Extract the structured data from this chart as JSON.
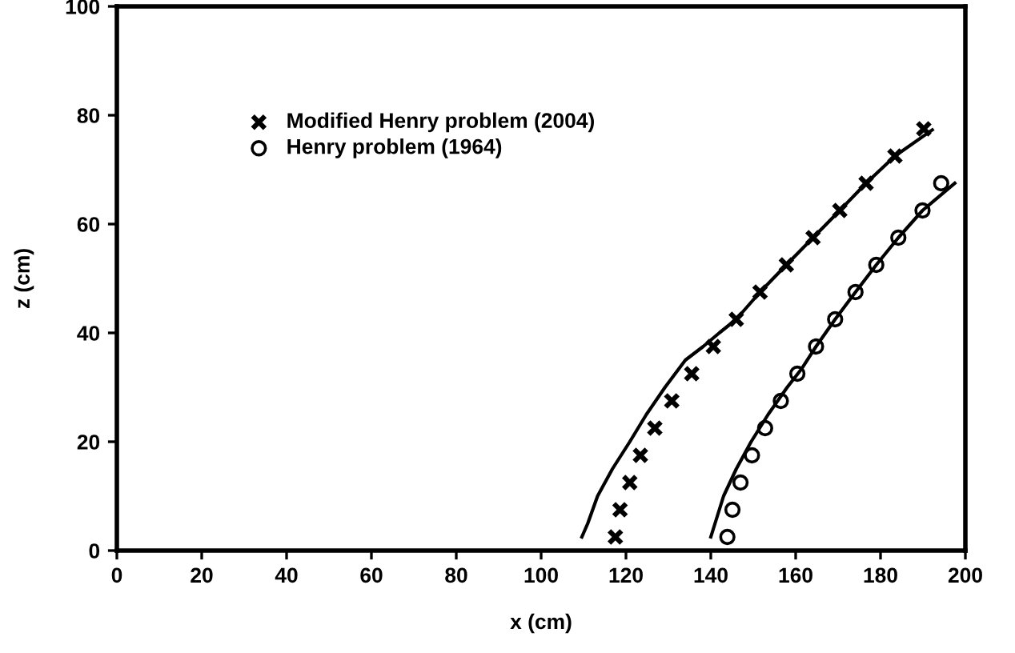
{
  "chart_data": {
    "type": "scatter",
    "xlabel": "x (cm)",
    "ylabel": "z (cm)",
    "xlim": [
      0,
      200
    ],
    "xticks": [
      0,
      20,
      40,
      60,
      80,
      100,
      120,
      140,
      160,
      180,
      200
    ],
    "ylim": [
      0,
      100
    ],
    "yticks": [
      0,
      20,
      40,
      60,
      80,
      100
    ],
    "grid": false,
    "legend": "top left",
    "series": [
      {
        "name": "Modified Henry problem (2004)",
        "marker": "cross",
        "color": "#000000",
        "x": [
          117.5,
          118.6,
          120.9,
          123.4,
          126.8,
          130.8,
          135.5,
          140.6,
          146,
          151.6,
          157.8,
          164.1,
          170.4,
          176.6,
          183.4,
          190.2
        ],
        "values": [
          2.5,
          7.5,
          12.5,
          17.5,
          22.5,
          27.5,
          32.5,
          37.5,
          42.5,
          47.5,
          52.5,
          57.5,
          62.5,
          67.5,
          72.5,
          77.5
        ]
      },
      {
        "name": "Henry problem (1964)",
        "marker": "circle",
        "color": "#000000",
        "x": [
          143.9,
          145.1,
          147,
          149.7,
          152.8,
          156.5,
          160.4,
          164.8,
          169.3,
          174.1,
          179,
          184.2,
          189.9,
          194.3
        ],
        "values": [
          2.5,
          7.5,
          12.5,
          17.5,
          22.5,
          27.5,
          32.5,
          37.5,
          42.5,
          47.5,
          52.5,
          57.5,
          62.5,
          67.5
        ]
      },
      {
        "type": "line",
        "marker": "none",
        "line_style": "solid",
        "color": "#000000",
        "x": [
          109.6,
          111,
          113.3,
          116.8,
          120.9,
          124.8,
          129.2,
          134,
          138.2,
          142,
          146,
          151.6,
          157.8,
          164.1,
          170.4,
          176.6,
          183.4,
          192.2
        ],
        "values": [
          2.5,
          5,
          10,
          15,
          20,
          25,
          30,
          35,
          37.5,
          40,
          42.5,
          47.5,
          52.5,
          57.5,
          62.5,
          67.5,
          72.5,
          77.3
        ]
      },
      {
        "type": "line",
        "marker": "none",
        "line_style": "solid",
        "color": "#000000",
        "x": [
          140,
          141,
          143,
          146,
          149.5,
          153.5,
          158,
          161.5,
          164.8,
          169.3,
          174.1,
          179,
          184.2,
          189.9,
          197.5
        ],
        "values": [
          2.5,
          5,
          10,
          15,
          20,
          25,
          30,
          33.5,
          37.5,
          42.5,
          47.5,
          52.5,
          57.5,
          62.5,
          67.5
        ]
      }
    ]
  }
}
